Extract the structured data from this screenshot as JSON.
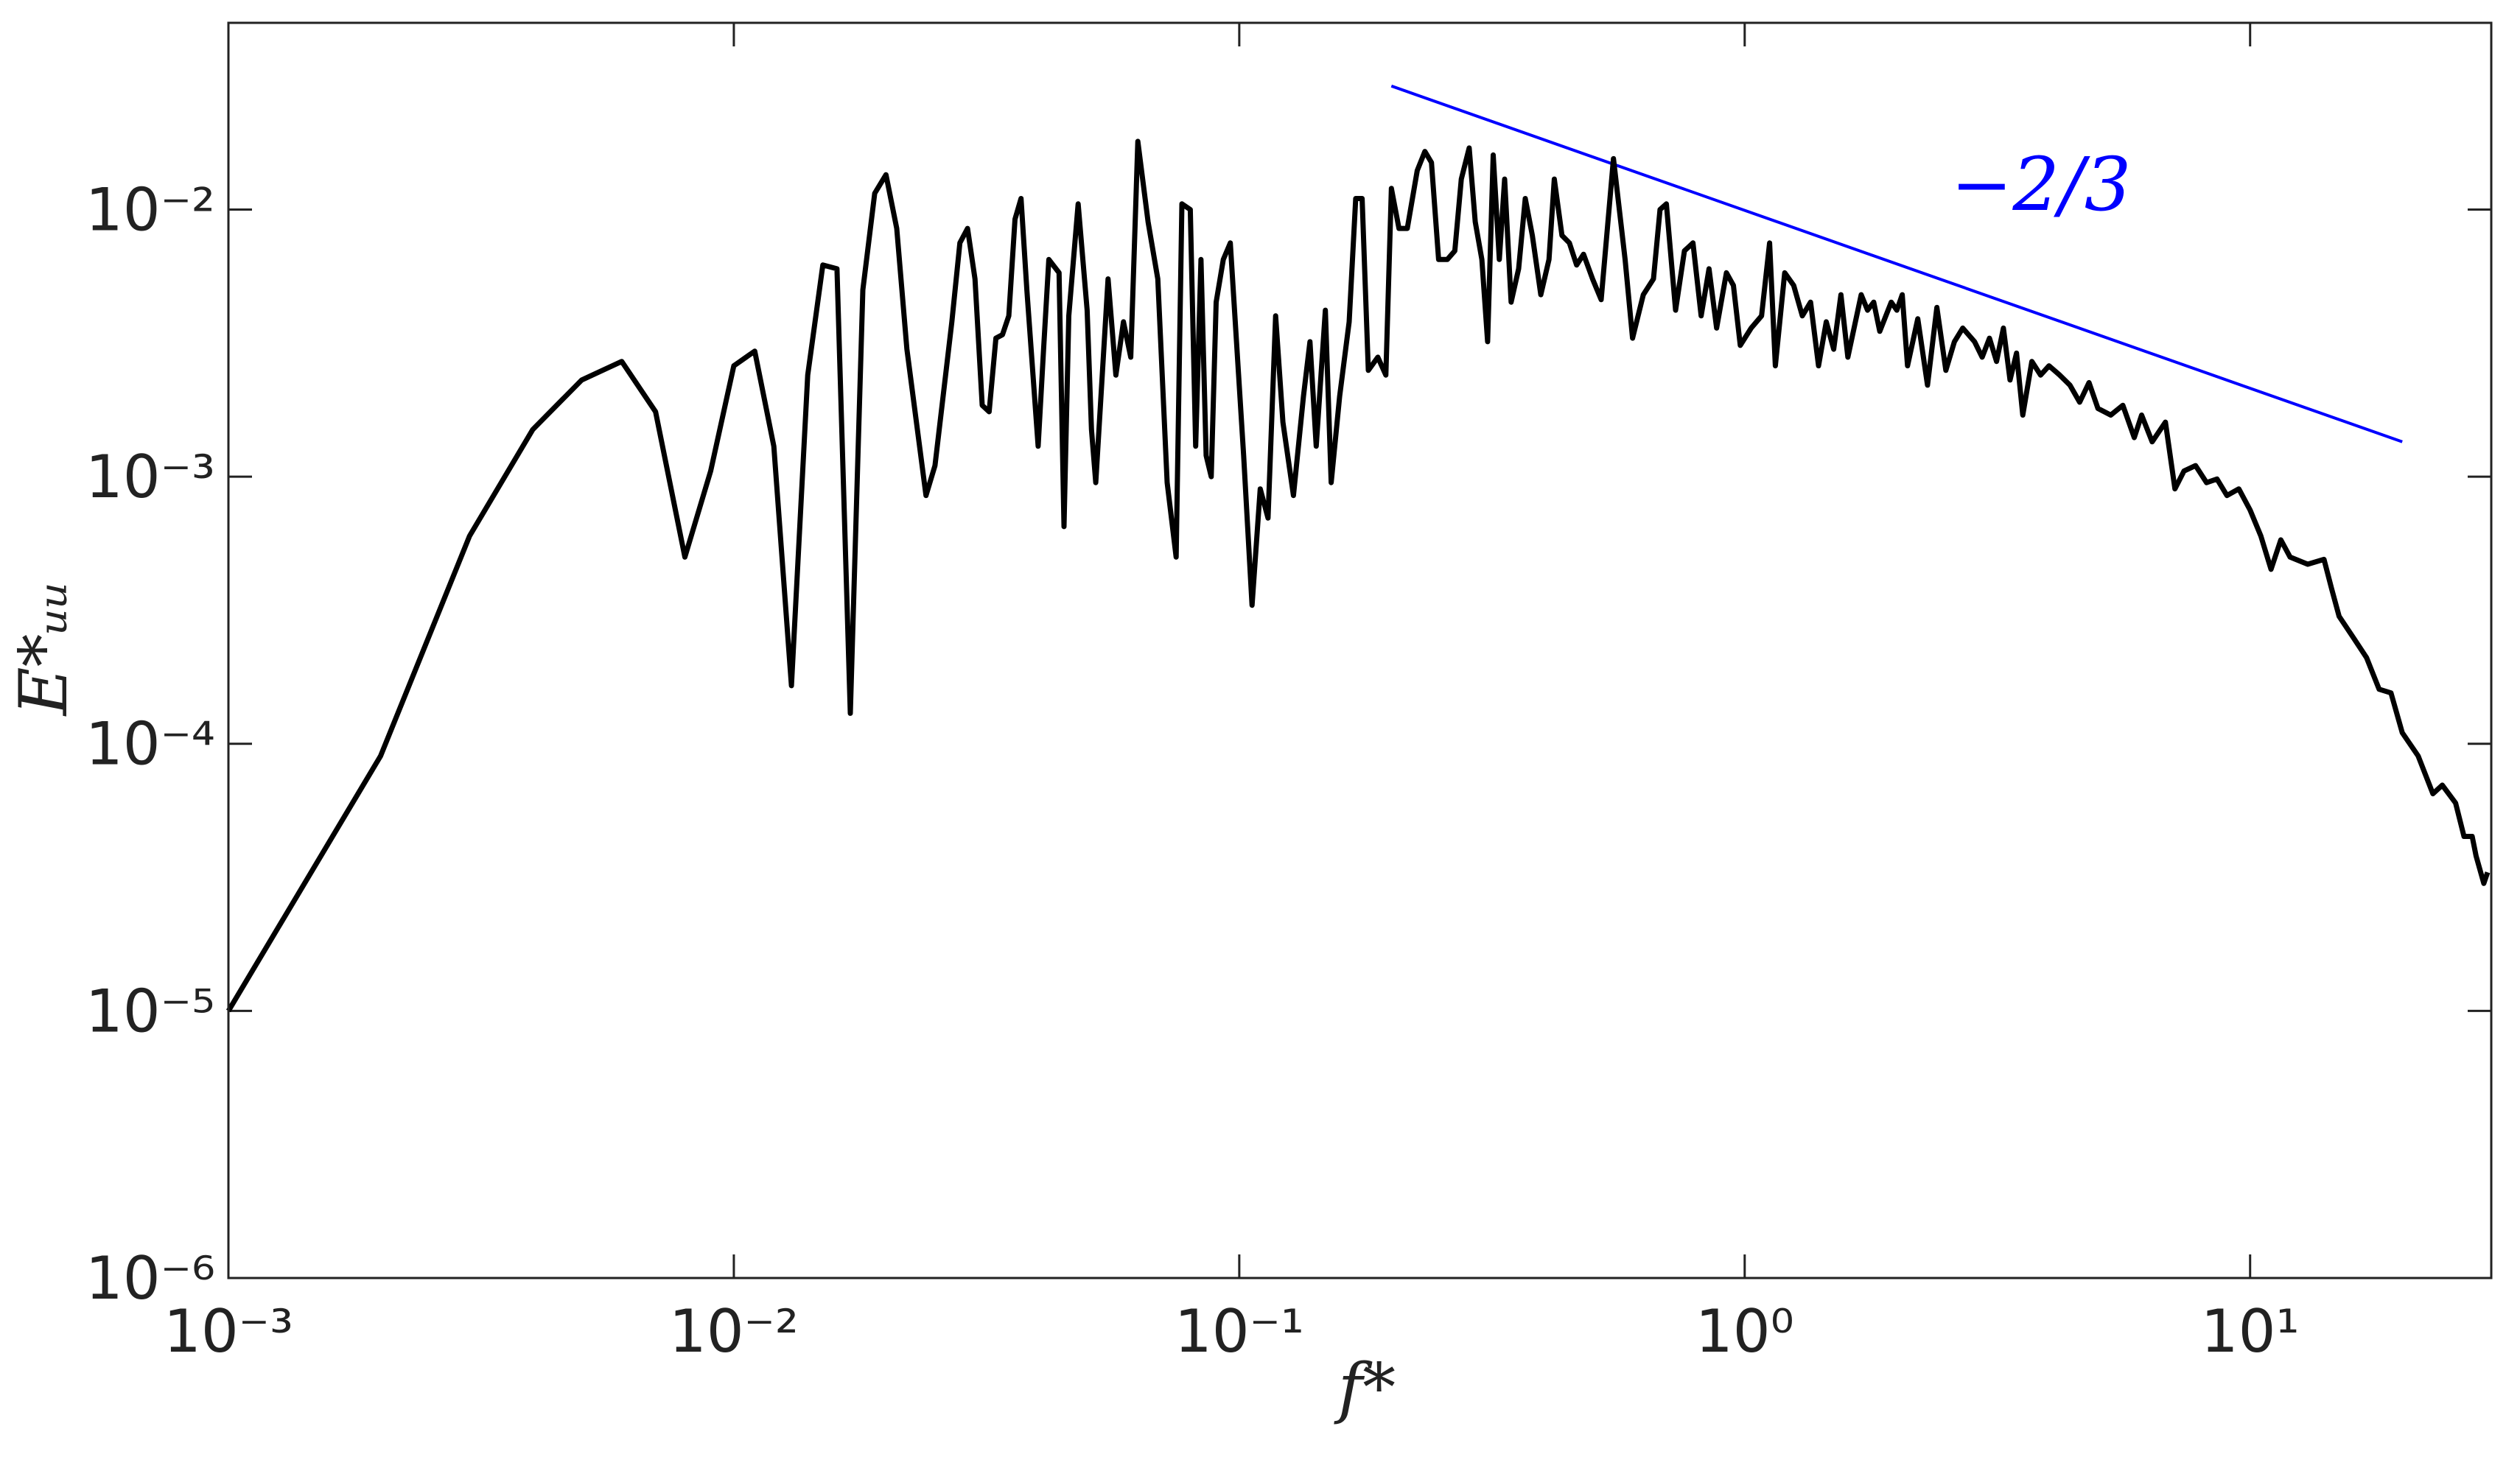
{
  "chart_data": {
    "type": "line",
    "log_x": true,
    "log_y": true,
    "xlabel": "f*",
    "ylabel": "E*ᵤᵤ",
    "xlim": [
      0.001,
      30
    ],
    "ylim": [
      1e-06,
      0.05
    ],
    "xticks": [
      {
        "value": 0.001,
        "label": "10⁻³"
      },
      {
        "value": 0.01,
        "label": "10⁻²"
      },
      {
        "value": 0.1,
        "label": "10⁻¹"
      },
      {
        "value": 1,
        "label": "10⁰"
      },
      {
        "value": 10,
        "label": "10¹"
      }
    ],
    "yticks": [
      {
        "value": 1e-06,
        "label": "10⁻⁶"
      },
      {
        "value": 1e-05,
        "label": "10⁻⁵"
      },
      {
        "value": 0.0001,
        "label": "10⁻⁴"
      },
      {
        "value": 0.001,
        "label": "10⁻³"
      },
      {
        "value": 0.01,
        "label": "10⁻²"
      }
    ],
    "grid": false,
    "x": [
      0.001,
      0.002,
      0.003,
      0.004,
      0.005,
      0.006,
      0.007,
      0.008,
      0.009,
      0.01,
      0.011,
      0.012,
      0.013,
      0.014,
      0.015,
      0.016,
      0.017,
      0.018,
      0.019,
      0.02,
      0.021,
      0.022,
      0.024,
      0.025,
      0.027,
      0.028,
      0.029,
      0.03,
      0.031,
      0.032,
      0.033,
      0.034,
      0.035,
      0.036,
      0.037,
      0.038,
      0.04,
      0.041,
      0.042,
      0.044,
      0.045,
      0.046,
      0.048,
      0.05,
      0.051,
      0.052,
      0.055,
      0.057,
      0.059,
      0.061,
      0.063,
      0.066,
      0.069,
      0.072,
      0.075,
      0.077,
      0.08,
      0.082,
      0.084,
      0.086,
      0.088,
      0.09,
      0.093,
      0.096,
      0.102,
      0.106,
      0.11,
      0.114,
      0.118,
      0.122,
      0.128,
      0.134,
      0.138,
      0.142,
      0.148,
      0.152,
      0.158,
      0.165,
      0.17,
      0.175,
      0.18,
      0.188,
      0.195,
      0.2,
      0.207,
      0.215,
      0.225,
      0.233,
      0.24,
      0.248,
      0.258,
      0.267,
      0.275,
      0.285,
      0.293,
      0.302,
      0.31,
      0.318,
      0.327,
      0.335,
      0.345,
      0.357,
      0.368,
      0.38,
      0.395,
      0.41,
      0.42,
      0.435,
      0.45,
      0.465,
      0.48,
      0.5,
      0.52,
      0.55,
      0.58,
      0.6,
      0.63,
      0.66,
      0.68,
      0.7,
      0.73,
      0.76,
      0.79,
      0.82,
      0.85,
      0.88,
      0.92,
      0.95,
      0.98,
      1.03,
      1.08,
      1.12,
      1.15,
      1.2,
      1.25,
      1.3,
      1.35,
      1.4,
      1.45,
      1.5,
      1.55,
      1.6,
      1.7,
      1.75,
      1.8,
      1.85,
      1.95,
      2.0,
      2.05,
      2.1,
      2.2,
      2.3,
      2.4,
      2.5,
      2.6,
      2.7,
      2.85,
      2.95,
      3.05,
      3.15,
      3.25,
      3.35,
      3.45,
      3.55,
      3.7,
      3.85,
      4.0,
      4.2,
      4.4,
      4.6,
      4.8,
      5.0,
      5.3,
      5.6,
      5.9,
      6.1,
      6.4,
      6.8,
      7.1,
      7.4,
      7.8,
      8.2,
      8.6,
      9.0,
      9.5,
      10.0,
      10.5,
      11.0,
      11.5,
      12.0,
      13.0,
      14.0,
      14.5,
      15.0,
      16.0,
      17.0,
      18.0,
      19.0,
      20.0,
      21.5,
      23.0,
      24.0,
      25.5,
      26.5,
      27.5,
      28.0,
      29.0,
      29.5
    ],
    "series": [
      {
        "color": "#000000",
        "values": [
          1e-05,
          9e-05,
          0.0006,
          0.0015,
          0.0023,
          0.0027,
          0.00175,
          0.0005,
          0.00105,
          0.0026,
          0.00295,
          0.0013,
          0.000165,
          0.0024,
          0.0062,
          0.006,
          0.00013,
          0.005,
          0.0115,
          0.0135,
          0.0085,
          0.003,
          0.00085,
          0.0011,
          0.0038,
          0.0075,
          0.0085,
          0.0055,
          0.00185,
          0.00175,
          0.0033,
          0.0034,
          0.004,
          0.0092,
          0.011,
          0.005,
          0.0013,
          0.003,
          0.0065,
          0.0058,
          0.00065,
          0.004,
          0.0105,
          0.0042,
          0.0015,
          0.00095,
          0.0055,
          0.0024,
          0.0038,
          0.0028,
          0.018,
          0.009,
          0.0055,
          0.00095,
          0.0005,
          0.0105,
          0.01,
          0.0013,
          0.0065,
          0.0012,
          0.001,
          0.0045,
          0.0065,
          0.0075,
          0.0012,
          0.00033,
          0.0009,
          0.0007,
          0.004,
          0.0016,
          0.00085,
          0.002,
          0.0032,
          0.0013,
          0.0042,
          0.00095,
          0.002,
          0.0038,
          0.011,
          0.011,
          0.0025,
          0.0028,
          0.0024,
          0.012,
          0.0085,
          0.0085,
          0.014,
          0.0165,
          0.015,
          0.0065,
          0.0065,
          0.007,
          0.013,
          0.017,
          0.009,
          0.0065,
          0.0032,
          0.016,
          0.0065,
          0.013,
          0.0045,
          0.006,
          0.011,
          0.008,
          0.0048,
          0.0065,
          0.013,
          0.008,
          0.0075,
          0.0062,
          0.0068,
          0.0055,
          0.0046,
          0.0155,
          0.0065,
          0.0033,
          0.0048,
          0.0055,
          0.01,
          0.0105,
          0.0042,
          0.007,
          0.0075,
          0.004,
          0.006,
          0.0036,
          0.0058,
          0.0052,
          0.0031,
          0.0036,
          0.004,
          0.0075,
          0.0026,
          0.0058,
          0.0052,
          0.004,
          0.0045,
          0.0026,
          0.0038,
          0.003,
          0.0048,
          0.0028,
          0.0048,
          0.0042,
          0.0045,
          0.0035,
          0.0045,
          0.0042,
          0.0048,
          0.0026,
          0.0039,
          0.0022,
          0.0043,
          0.0025,
          0.0032,
          0.0036,
          0.0032,
          0.0028,
          0.0033,
          0.0027,
          0.0036,
          0.0023,
          0.0029,
          0.0017,
          0.0027,
          0.0024,
          0.0026,
          0.0024,
          0.0022,
          0.0019,
          0.00225,
          0.0018,
          0.0017,
          0.00185,
          0.0014,
          0.0017,
          0.00135,
          0.0016,
          0.0009,
          0.00105,
          0.0011,
          0.00095,
          0.00098,
          0.00085,
          0.0009,
          0.00075,
          0.0006,
          0.00045,
          0.00058,
          0.0005,
          0.00047,
          0.00049,
          0.00038,
          0.0003,
          0.00025,
          0.00021,
          0.00016,
          0.000155,
          0.00011,
          9e-05,
          6.5e-05,
          7e-05,
          6e-05,
          4.5e-05,
          4.5e-05,
          3.8e-05,
          3e-05,
          3.3e-05
        ]
      }
    ],
    "reference_line": {
      "x": [
        0.2,
        20
      ],
      "values": [
        0.029,
        0.00135
      ],
      "color": "#0000ff",
      "label": "−2/3"
    }
  }
}
